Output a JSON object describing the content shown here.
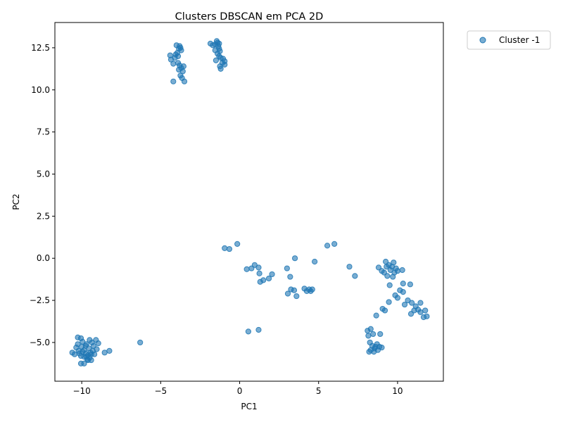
{
  "chart_data": {
    "type": "scatter",
    "title": "Clusters DBSCAN em PCA 2D",
    "xlabel": "PC1",
    "ylabel": "PC2",
    "xlim": [
      -11.7,
      12.9
    ],
    "ylim": [
      -7.3,
      14.0
    ],
    "xticks": [
      -10,
      -5,
      0,
      5,
      10
    ],
    "yticks": [
      -5.0,
      -2.5,
      0.0,
      2.5,
      5.0,
      7.5,
      10.0,
      12.5
    ],
    "grid": false,
    "legend_position": "outside-top-right",
    "colors": {
      "series": "#1f77b4"
    },
    "series": [
      {
        "name": "Cluster -1",
        "points": [
          [
            -4.4,
            12.05
          ],
          [
            -4.35,
            11.8
          ],
          [
            -4.1,
            11.9
          ],
          [
            -4.0,
            12.65
          ],
          [
            -3.95,
            12.2
          ],
          [
            -3.85,
            12.45
          ],
          [
            -3.8,
            12.6
          ],
          [
            -3.75,
            12.5
          ],
          [
            -3.7,
            12.35
          ],
          [
            -3.55,
            11.4
          ],
          [
            -3.9,
            11.6
          ],
          [
            -3.8,
            11.45
          ],
          [
            -3.7,
            11.3
          ],
          [
            -3.6,
            11.1
          ],
          [
            -3.75,
            10.85
          ],
          [
            -3.65,
            10.7
          ],
          [
            -3.5,
            10.5
          ],
          [
            -4.2,
            10.5
          ],
          [
            -4.05,
            12.1
          ],
          [
            -3.9,
            12.0
          ],
          [
            -4.2,
            11.55
          ],
          [
            -3.85,
            11.2
          ],
          [
            -1.85,
            12.75
          ],
          [
            -1.7,
            12.65
          ],
          [
            -1.55,
            12.7
          ],
          [
            -1.45,
            12.9
          ],
          [
            -1.4,
            12.8
          ],
          [
            -1.35,
            12.6
          ],
          [
            -1.3,
            12.45
          ],
          [
            -1.25,
            12.3
          ],
          [
            -1.4,
            12.15
          ],
          [
            -1.3,
            12.0
          ],
          [
            -1.2,
            11.9
          ],
          [
            -1.05,
            11.85
          ],
          [
            -0.95,
            11.7
          ],
          [
            -1.1,
            11.6
          ],
          [
            -0.95,
            11.5
          ],
          [
            -1.2,
            11.25
          ],
          [
            -1.5,
            11.75
          ],
          [
            -1.55,
            12.35
          ],
          [
            -1.3,
            12.75
          ],
          [
            -1.25,
            11.4
          ],
          [
            -0.95,
            0.6
          ],
          [
            -0.65,
            0.55
          ],
          [
            -0.15,
            0.85
          ],
          [
            0.45,
            -0.65
          ],
          [
            0.75,
            -0.6
          ],
          [
            0.95,
            -0.4
          ],
          [
            1.2,
            -0.55
          ],
          [
            1.25,
            -0.9
          ],
          [
            1.3,
            -1.4
          ],
          [
            1.5,
            -1.3
          ],
          [
            1.85,
            -1.2
          ],
          [
            2.05,
            -0.95
          ],
          [
            3.0,
            -0.6
          ],
          [
            3.2,
            -1.1
          ],
          [
            3.05,
            -2.1
          ],
          [
            3.25,
            -1.85
          ],
          [
            3.45,
            -1.9
          ],
          [
            3.6,
            -2.25
          ],
          [
            3.5,
            0.0
          ],
          [
            4.1,
            -1.8
          ],
          [
            4.25,
            -1.95
          ],
          [
            4.4,
            -1.85
          ],
          [
            4.5,
            -1.95
          ],
          [
            4.6,
            -1.85
          ],
          [
            4.75,
            -0.2
          ],
          [
            5.55,
            0.75
          ],
          [
            6.0,
            0.85
          ],
          [
            6.95,
            -0.5
          ],
          [
            7.3,
            -1.05
          ],
          [
            0.55,
            -4.35
          ],
          [
            1.2,
            -4.25
          ],
          [
            -6.3,
            -5.0
          ],
          [
            8.8,
            -0.55
          ],
          [
            9.0,
            -0.75
          ],
          [
            9.15,
            -0.85
          ],
          [
            9.25,
            -0.2
          ],
          [
            9.3,
            -0.5
          ],
          [
            9.45,
            -0.4
          ],
          [
            9.55,
            -0.7
          ],
          [
            9.65,
            -0.5
          ],
          [
            9.75,
            -0.25
          ],
          [
            9.8,
            -0.85
          ],
          [
            9.9,
            -0.6
          ],
          [
            10.0,
            -0.75
          ],
          [
            10.3,
            -0.7
          ],
          [
            9.35,
            -1.05
          ],
          [
            9.7,
            -1.1
          ],
          [
            9.5,
            -1.6
          ],
          [
            9.85,
            -2.2
          ],
          [
            10.0,
            -2.35
          ],
          [
            10.15,
            -1.9
          ],
          [
            10.35,
            -2.0
          ],
          [
            10.35,
            -1.5
          ],
          [
            10.8,
            -1.55
          ],
          [
            9.45,
            -2.6
          ],
          [
            10.45,
            -2.75
          ],
          [
            10.65,
            -2.5
          ],
          [
            10.9,
            -2.65
          ],
          [
            11.15,
            -2.85
          ],
          [
            11.45,
            -2.65
          ],
          [
            10.85,
            -3.3
          ],
          [
            11.05,
            -3.1
          ],
          [
            11.3,
            -3.05
          ],
          [
            11.45,
            -3.2
          ],
          [
            11.65,
            -3.5
          ],
          [
            11.75,
            -3.1
          ],
          [
            11.85,
            -3.45
          ],
          [
            9.05,
            -3.0
          ],
          [
            9.2,
            -3.1
          ],
          [
            8.65,
            -3.4
          ],
          [
            8.1,
            -4.3
          ],
          [
            8.3,
            -4.2
          ],
          [
            8.45,
            -4.5
          ],
          [
            8.15,
            -4.6
          ],
          [
            8.9,
            -4.5
          ],
          [
            8.25,
            -5.0
          ],
          [
            8.4,
            -5.2
          ],
          [
            8.55,
            -5.35
          ],
          [
            8.7,
            -5.1
          ],
          [
            8.85,
            -5.25
          ],
          [
            9.0,
            -5.3
          ],
          [
            8.3,
            -5.45
          ],
          [
            8.5,
            -5.55
          ],
          [
            8.75,
            -5.45
          ],
          [
            8.2,
            -5.55
          ],
          [
            8.6,
            -5.25
          ],
          [
            -10.6,
            -5.6
          ],
          [
            -10.45,
            -5.7
          ],
          [
            -10.35,
            -5.3
          ],
          [
            -10.25,
            -5.1
          ],
          [
            -10.25,
            -4.7
          ],
          [
            -10.05,
            -4.75
          ],
          [
            -9.95,
            -4.95
          ],
          [
            -10.0,
            -5.25
          ],
          [
            -9.85,
            -5.45
          ],
          [
            -9.75,
            -5.65
          ],
          [
            -9.7,
            -5.85
          ],
          [
            -9.6,
            -6.05
          ],
          [
            -9.5,
            -5.9
          ],
          [
            -9.4,
            -5.7
          ],
          [
            -9.3,
            -5.5
          ],
          [
            -9.25,
            -5.2
          ],
          [
            -9.35,
            -5.0
          ],
          [
            -9.1,
            -4.85
          ],
          [
            -8.95,
            -5.05
          ],
          [
            -9.05,
            -5.4
          ],
          [
            -9.2,
            -5.7
          ],
          [
            -9.4,
            -6.05
          ],
          [
            -9.65,
            -6.0
          ],
          [
            -9.85,
            -5.85
          ],
          [
            -10.05,
            -5.8
          ],
          [
            -10.2,
            -5.5
          ],
          [
            -10.05,
            -6.25
          ],
          [
            -9.85,
            -6.25
          ],
          [
            -8.55,
            -5.6
          ],
          [
            -8.25,
            -5.5
          ],
          [
            -9.5,
            -4.85
          ],
          [
            -9.7,
            -5.1
          ],
          [
            -9.55,
            -5.35
          ],
          [
            -9.75,
            -5.2
          ],
          [
            -10.15,
            -5.65
          ],
          [
            -9.45,
            -5.6
          ],
          [
            -9.95,
            -5.55
          ],
          [
            -9.6,
            -5.75
          ]
        ]
      }
    ]
  }
}
